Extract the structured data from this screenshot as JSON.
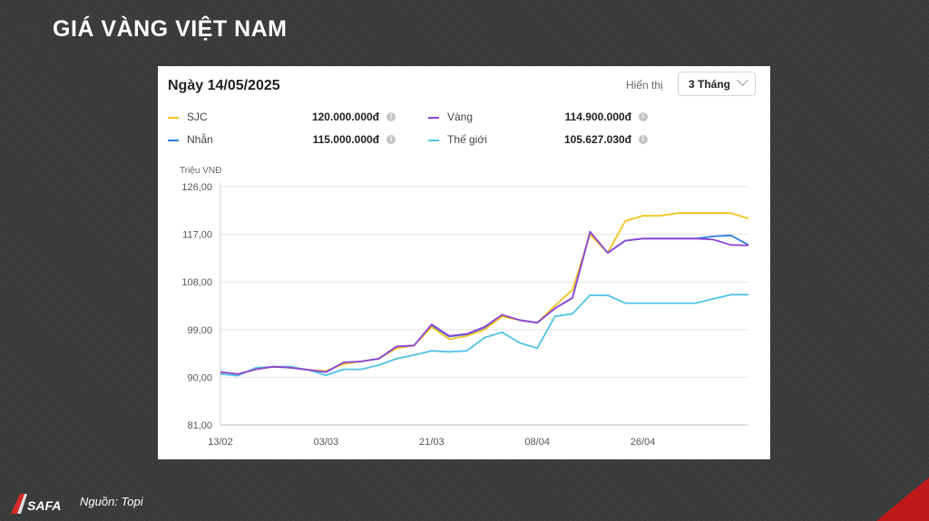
{
  "slide": {
    "title": "GIÁ VÀNG VIỆT NAM",
    "source": "Nguồn: Topi",
    "logo_text": "SAFA"
  },
  "card": {
    "date": "Ngày 14/05/2025",
    "display_label": "Hiển thị",
    "range_select": "3 Tháng"
  },
  "legend": [
    {
      "name": "SJC",
      "value": "120.000.000đ",
      "color": "#f2c21b"
    },
    {
      "name": "Vàng",
      "value": "114.900.000đ",
      "color": "#8e44d8"
    },
    {
      "name": "Nhẫn",
      "value": "115.000.000đ",
      "color": "#2d7fe0"
    },
    {
      "name": "Thế giới",
      "value": "105.627.030đ",
      "color": "#4fc3e6"
    }
  ],
  "info_icon": "info-circle-icon",
  "chart_data": {
    "type": "line",
    "ylabel": "Triệu VNĐ",
    "ylim": [
      81,
      126
    ],
    "yticks": [
      "126,00",
      "117,00",
      "108,00",
      "99,00",
      "90,00",
      "81,00"
    ],
    "xticks": [
      "13/02",
      "03/03",
      "21/03",
      "08/04",
      "26/04"
    ],
    "x": [
      "13/02",
      "16/02",
      "19/02",
      "22/02",
      "25/02",
      "28/02",
      "03/03",
      "06/03",
      "09/03",
      "12/03",
      "15/03",
      "18/03",
      "21/03",
      "24/03",
      "27/03",
      "30/03",
      "02/04",
      "05/04",
      "08/04",
      "11/04",
      "14/04",
      "17/04",
      "20/04",
      "23/04",
      "26/04",
      "29/04",
      "02/05",
      "05/05",
      "08/05",
      "11/05",
      "14/05"
    ],
    "series": [
      {
        "name": "SJC",
        "color": "#f2c21b",
        "values": [
          91.0,
          90.6,
          91.5,
          92.0,
          91.8,
          91.4,
          91.2,
          92.5,
          93.0,
          93.5,
          95.5,
          96.0,
          99.5,
          97.2,
          97.8,
          99.0,
          101.5,
          100.8,
          100.3,
          103.5,
          106.5,
          117.0,
          113.5,
          119.5,
          120.5,
          120.5,
          121.0,
          121.0,
          121.0,
          121.0,
          120.0
        ]
      },
      {
        "name": "Vàng",
        "color": "#8e44d8",
        "values": [
          91.0,
          90.6,
          91.5,
          92.0,
          91.8,
          91.4,
          91.0,
          92.8,
          93.0,
          93.5,
          95.8,
          96.0,
          100.0,
          97.8,
          98.2,
          99.5,
          101.8,
          100.8,
          100.3,
          103.0,
          105.0,
          117.5,
          113.5,
          115.8,
          116.2,
          116.2,
          116.2,
          116.2,
          116.0,
          115.0,
          114.9
        ]
      },
      {
        "name": "Nhẫn",
        "color": "#2d7fe0",
        "values": [
          91.0,
          90.6,
          91.5,
          92.0,
          91.8,
          91.4,
          91.0,
          92.8,
          93.0,
          93.5,
          95.8,
          96.0,
          99.8,
          97.7,
          98.1,
          99.4,
          101.7,
          100.8,
          100.3,
          103.0,
          105.0,
          117.3,
          113.5,
          115.8,
          116.2,
          116.2,
          116.2,
          116.2,
          116.6,
          116.8,
          115.0
        ]
      },
      {
        "name": "Thế giới",
        "color": "#4fc3e6",
        "values": [
          90.6,
          90.3,
          91.8,
          92.0,
          92.0,
          91.4,
          90.4,
          91.5,
          91.5,
          92.3,
          93.5,
          94.2,
          95.0,
          94.8,
          95.0,
          97.5,
          98.5,
          96.5,
          95.5,
          101.5,
          102.0,
          105.5,
          105.5,
          104.0,
          104.0,
          104.0,
          104.0,
          104.0,
          104.8,
          105.6,
          105.6
        ]
      }
    ]
  }
}
